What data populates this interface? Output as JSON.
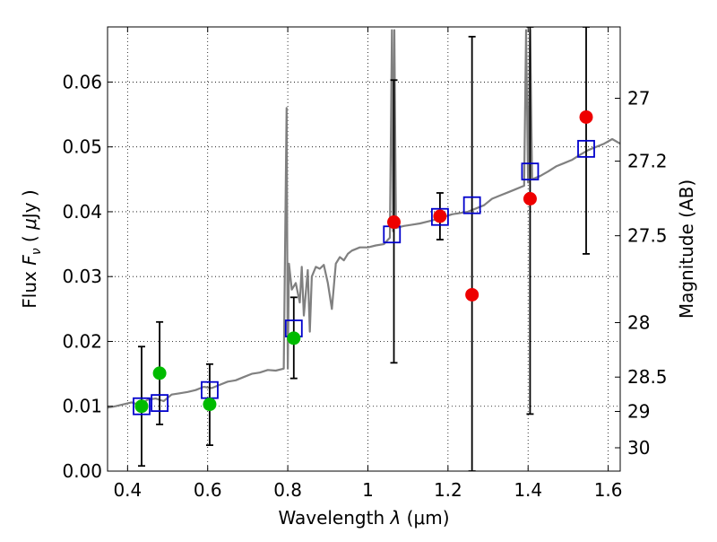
{
  "chart_data": {
    "type": "scatter",
    "title": "",
    "xlabel": "Wavelength  λ (μm)",
    "ylabel": "Flux  F_ν  ( μJy )",
    "ylabel_right": "Magnitude (AB)",
    "xlim": [
      0.35,
      1.63
    ],
    "ylim": [
      0.0,
      0.0685
    ],
    "x_ticks": [
      0.4,
      0.6,
      0.8,
      1.0,
      1.2,
      1.4,
      1.6
    ],
    "x_tick_labels": [
      "0.4",
      "0.6",
      "0.8",
      "1",
      "1.2",
      "1.4",
      "1.6"
    ],
    "y_ticks": [
      0.0,
      0.01,
      0.02,
      0.03,
      0.04,
      0.05,
      0.06
    ],
    "y_tick_labels": [
      "0.00",
      "0.01",
      "0.02",
      "0.03",
      "0.04",
      "0.05",
      "0.06"
    ],
    "right_axis": {
      "tick_labels": [
        "27",
        "27.2",
        "27.5",
        "28",
        "28.5",
        "29",
        "30"
      ],
      "tick_flux": [
        0.0575,
        0.0478,
        0.0363,
        0.0229,
        0.0145,
        0.0092,
        0.0036
      ]
    },
    "grid": true,
    "grid_style": "dotted",
    "legend": "none",
    "colors": {
      "spectrum": "#808080",
      "model": "#0000cc",
      "green_points": "#00bb00",
      "red_points": "#ee0000",
      "errorbars": "#000000"
    },
    "series": [
      {
        "kind": "line",
        "color": "#808080",
        "x": [
          0.35,
          0.37,
          0.39,
          0.41,
          0.43,
          0.45,
          0.47,
          0.49,
          0.51,
          0.53,
          0.55,
          0.57,
          0.59,
          0.61,
          0.63,
          0.65,
          0.67,
          0.69,
          0.71,
          0.73,
          0.75,
          0.77,
          0.79,
          0.797,
          0.8,
          0.803,
          0.81,
          0.82,
          0.83,
          0.835,
          0.84,
          0.85,
          0.855,
          0.86,
          0.87,
          0.88,
          0.89,
          0.9,
          0.91,
          0.92,
          0.93,
          0.94,
          0.95,
          0.96,
          0.98,
          1.0,
          1.02,
          1.04,
          1.055,
          1.06,
          1.063,
          1.066,
          1.07,
          1.09,
          1.11,
          1.13,
          1.15,
          1.17,
          1.19,
          1.21,
          1.23,
          1.25,
          1.27,
          1.29,
          1.31,
          1.33,
          1.35,
          1.37,
          1.39,
          1.395,
          1.4,
          1.405,
          1.41,
          1.43,
          1.45,
          1.47,
          1.49,
          1.51,
          1.53,
          1.55,
          1.57,
          1.59,
          1.61,
          1.63
        ],
        "y": [
          0.0098,
          0.01,
          0.0103,
          0.0106,
          0.0102,
          0.011,
          0.0112,
          0.0108,
          0.0118,
          0.012,
          0.0122,
          0.0125,
          0.013,
          0.0128,
          0.0133,
          0.0138,
          0.014,
          0.0145,
          0.015,
          0.0152,
          0.0156,
          0.0155,
          0.0158,
          0.056,
          0.0158,
          0.032,
          0.028,
          0.029,
          0.026,
          0.0315,
          0.024,
          0.031,
          0.0215,
          0.03,
          0.0315,
          0.0312,
          0.0318,
          0.029,
          0.025,
          0.032,
          0.033,
          0.0325,
          0.0335,
          0.034,
          0.0345,
          0.0345,
          0.0348,
          0.035,
          0.036,
          0.068,
          0.037,
          0.068,
          0.0375,
          0.0378,
          0.038,
          0.0382,
          0.0385,
          0.0388,
          0.0392,
          0.0396,
          0.0398,
          0.04,
          0.0405,
          0.041,
          0.042,
          0.0425,
          0.043,
          0.0435,
          0.044,
          0.068,
          0.0445,
          0.068,
          0.045,
          0.0455,
          0.0462,
          0.047,
          0.0475,
          0.048,
          0.0488,
          0.0495,
          0.05,
          0.0505,
          0.0512,
          0.0505
        ]
      },
      {
        "kind": "squares",
        "color": "#0000cc",
        "x": [
          0.435,
          0.48,
          0.605,
          0.815,
          1.06,
          1.18,
          1.26,
          1.405,
          1.545
        ],
        "y": [
          0.01,
          0.0105,
          0.0125,
          0.022,
          0.0365,
          0.0392,
          0.041,
          0.0462,
          0.0497
        ]
      },
      {
        "kind": "points",
        "color": "#00bb00",
        "x": [
          0.435,
          0.48,
          0.605,
          0.815
        ],
        "y": [
          0.01,
          0.0151,
          0.0103,
          0.0205
        ]
      },
      {
        "kind": "points",
        "color": "#ee0000",
        "x": [
          1.065,
          1.18,
          1.26,
          1.405,
          1.545
        ],
        "y": [
          0.0384,
          0.0393,
          0.0272,
          0.042,
          0.0546
        ]
      }
    ],
    "errorbars": [
      {
        "x": 0.435,
        "low": 0.0008,
        "high": 0.0192
      },
      {
        "x": 0.48,
        "low": 0.0072,
        "high": 0.023
      },
      {
        "x": 0.605,
        "low": 0.004,
        "high": 0.0165
      },
      {
        "x": 0.815,
        "low": 0.0143,
        "high": 0.0268
      },
      {
        "x": 1.065,
        "low": 0.0167,
        "high": 0.0603
      },
      {
        "x": 1.18,
        "low": 0.0357,
        "high": 0.0429
      },
      {
        "x": 1.26,
        "low": 0.0,
        "high": 0.067
      },
      {
        "x": 1.405,
        "low": 0.0088,
        "high": 0.0685
      },
      {
        "x": 1.545,
        "low": 0.0335,
        "high": 0.0685
      }
    ]
  }
}
